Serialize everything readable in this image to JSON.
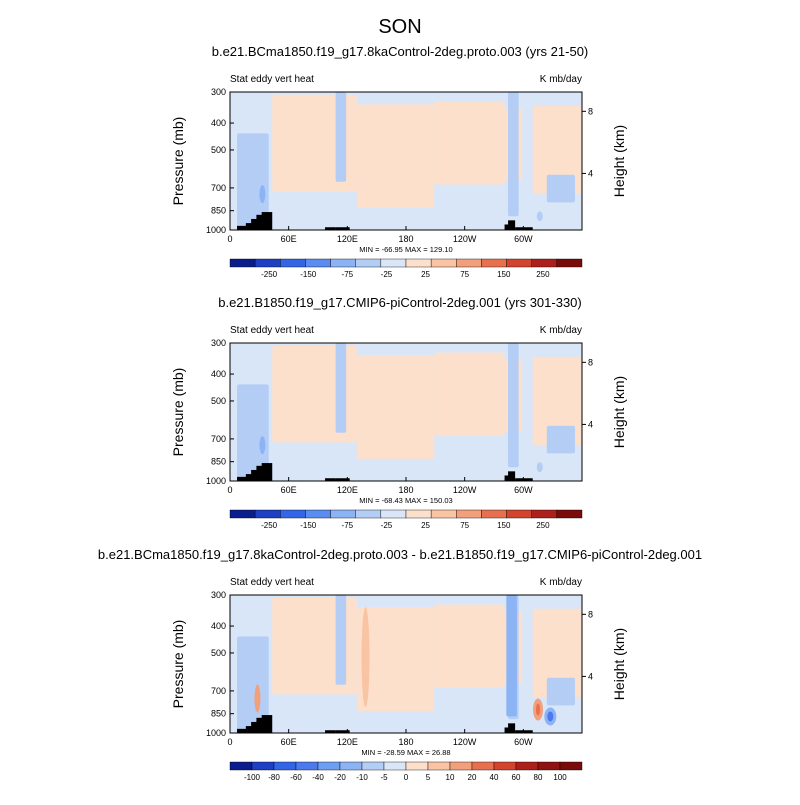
{
  "page": {
    "season_title": "SON"
  },
  "chart_data": [
    {
      "type": "heatmap",
      "title": "b.e21.BCma1850.f19_g17.8kaControl-2deg.proto.003 (yrs 21-50)",
      "left_label": "Stat eddy vert heat",
      "right_label": "K mb/day",
      "ylabel": "Pressure (mb)",
      "y2label": "Height (km)",
      "x_ticks": [
        "0",
        "60E",
        "120E",
        "180",
        "120W",
        "60W"
      ],
      "y_ticks": [
        "300",
        "400",
        "500",
        "700",
        "850",
        "1000"
      ],
      "y2_ticks": [
        "8",
        "4"
      ],
      "stats": "MIN = -66.95  MAX = 129.10",
      "colorbar_labels": [
        "-250",
        "-150",
        "-75",
        "-25",
        "25",
        "75",
        "150",
        "250"
      ],
      "colorbar_colors": [
        "#0a1d8c",
        "#1f3fc4",
        "#3366e6",
        "#5a8cf2",
        "#8cb4f5",
        "#b4cdf5",
        "#d9e6f7",
        "#fde0cc",
        "#f9c4a3",
        "#f2a07c",
        "#e8704f",
        "#d2442e",
        "#ad1f1a",
        "#7a0b0b"
      ]
    },
    {
      "type": "heatmap",
      "title": "b.e21.B1850.f19_g17.CMIP6-piControl-2deg.001 (yrs 301-330)",
      "left_label": "Stat eddy vert heat",
      "right_label": "K mb/day",
      "ylabel": "Pressure (mb)",
      "y2label": "Height (km)",
      "x_ticks": [
        "0",
        "60E",
        "120E",
        "180",
        "120W",
        "60W"
      ],
      "y_ticks": [
        "300",
        "400",
        "500",
        "700",
        "850",
        "1000"
      ],
      "y2_ticks": [
        "8",
        "4"
      ],
      "stats": "MIN = -68.43  MAX = 150.03",
      "colorbar_labels": [
        "-250",
        "-150",
        "-75",
        "-25",
        "25",
        "75",
        "150",
        "250"
      ],
      "colorbar_colors": [
        "#0a1d8c",
        "#1f3fc4",
        "#3366e6",
        "#5a8cf2",
        "#8cb4f5",
        "#b4cdf5",
        "#d9e6f7",
        "#fde0cc",
        "#f9c4a3",
        "#f2a07c",
        "#e8704f",
        "#d2442e",
        "#ad1f1a",
        "#7a0b0b"
      ]
    },
    {
      "type": "heatmap",
      "title": "b.e21.BCma1850.f19_g17.8kaControl-2deg.proto.003 - b.e21.B1850.f19_g17.CMIP6-piControl-2deg.001",
      "left_label": "Stat eddy vert heat",
      "right_label": "K mb/day",
      "ylabel": "Pressure (mb)",
      "y2label": "Height (km)",
      "x_ticks": [
        "0",
        "60E",
        "120E",
        "180",
        "120W",
        "60W"
      ],
      "y_ticks": [
        "300",
        "400",
        "500",
        "700",
        "850",
        "1000"
      ],
      "y2_ticks": [
        "8",
        "4"
      ],
      "stats": "MIN = -28.59  MAX = 26.88",
      "colorbar_labels": [
        "-100",
        "-80",
        "-60",
        "-40",
        "-20",
        "-10",
        "-5",
        "0",
        "5",
        "10",
        "20",
        "40",
        "60",
        "80",
        "100"
      ],
      "colorbar_colors": [
        "#0a1d8c",
        "#1f3fc4",
        "#3366e6",
        "#4a7aee",
        "#6c9ef2",
        "#8cb4f5",
        "#b4cdf5",
        "#d9e6f7",
        "#fde0cc",
        "#f9c4a3",
        "#f2a07c",
        "#e8704f",
        "#d2442e",
        "#ad1f1a",
        "#8f1212",
        "#7a0b0b"
      ]
    }
  ]
}
